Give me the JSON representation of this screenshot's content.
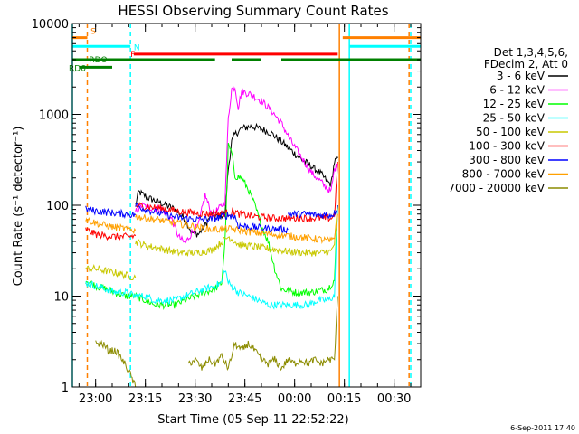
{
  "chart_data": {
    "type": "line",
    "title": "HESSI Observing Summary Count Rates",
    "xlabel": "Start Time (05-Sep-11 22:52:22)",
    "ylabel": "Count Rate (s⁻¹ detector⁻¹)",
    "ylog": true,
    "ylim": [
      1,
      10000
    ],
    "xlim_minutes": [
      -7,
      98
    ],
    "x_ticks": [
      {
        "m": 0,
        "label": "23:00"
      },
      {
        "m": 15,
        "label": "23:15"
      },
      {
        "m": 30,
        "label": "23:30"
      },
      {
        "m": 45,
        "label": "23:45"
      },
      {
        "m": 60,
        "label": "00:00"
      },
      {
        "m": 75,
        "label": "00:15"
      },
      {
        "m": 90,
        "label": "00:30"
      }
    ],
    "y_ticks": [
      {
        "v": 1,
        "label": "1"
      },
      {
        "v": 10,
        "label": "10"
      },
      {
        "v": 100,
        "label": "100"
      },
      {
        "v": 1000,
        "label": "1000"
      },
      {
        "v": 10000,
        "label": "10000"
      }
    ],
    "legend": {
      "header": [
        "Det 1,3,4,5,6,",
        "FDecim 2, Att 0"
      ],
      "placement": "right"
    },
    "series": [
      {
        "name": "3 - 6 keV",
        "color": "#000000",
        "segments": [
          [
            [
              12,
              100
            ],
            [
              13,
              140
            ],
            [
              16,
              120
            ],
            [
              20,
              105
            ],
            [
              24,
              90
            ],
            [
              27,
              70
            ],
            [
              29,
              50
            ],
            [
              31,
              48
            ],
            [
              33,
              60
            ],
            [
              35,
              80
            ],
            [
              37,
              75
            ],
            [
              39,
              80
            ],
            [
              40,
              250
            ],
            [
              41,
              500
            ],
            [
              42,
              600
            ],
            [
              44,
              700
            ],
            [
              47,
              740
            ],
            [
              50,
              690
            ],
            [
              53,
              620
            ],
            [
              56,
              500
            ],
            [
              59,
              400
            ],
            [
              62,
              320
            ],
            [
              65,
              270
            ],
            [
              68,
              220
            ],
            [
              70,
              180
            ],
            [
              71,
              170
            ],
            [
              72,
              300
            ],
            [
              73,
              330
            ]
          ]
        ]
      },
      {
        "name": "6 - 12 keV",
        "color": "#ff00ff",
        "segments": [
          [
            [
              12,
              85
            ],
            [
              14,
              100
            ],
            [
              16,
              95
            ],
            [
              20,
              90
            ],
            [
              23,
              70
            ],
            [
              25,
              45
            ],
            [
              27,
              38
            ],
            [
              29,
              50
            ],
            [
              31,
              60
            ],
            [
              33,
              130
            ],
            [
              35,
              80
            ],
            [
              37,
              90
            ],
            [
              39,
              110
            ],
            [
              40,
              900
            ],
            [
              41,
              1900
            ],
            [
              42,
              2000
            ],
            [
              43,
              1200
            ],
            [
              44,
              1800
            ],
            [
              47,
              1650
            ],
            [
              50,
              1400
            ],
            [
              53,
              1100
            ],
            [
              56,
              800
            ],
            [
              59,
              500
            ],
            [
              62,
              340
            ],
            [
              65,
              230
            ],
            [
              68,
              180
            ],
            [
              70,
              150
            ],
            [
              71,
              140
            ],
            [
              72,
              250
            ],
            [
              73,
              280
            ]
          ]
        ]
      },
      {
        "name": "12 - 25 keV",
        "color": "#00ff00",
        "segments": [
          [
            [
              -3,
              15
            ],
            [
              0,
              13
            ],
            [
              3,
              12
            ],
            [
              6,
              11
            ],
            [
              9,
              10
            ],
            [
              12,
              10
            ],
            [
              15,
              9
            ],
            [
              18,
              8
            ],
            [
              21,
              8
            ],
            [
              24,
              8
            ],
            [
              27,
              9
            ],
            [
              30,
              10
            ],
            [
              33,
              11
            ],
            [
              36,
              12
            ],
            [
              38,
              14
            ],
            [
              39,
              40
            ],
            [
              40,
              450
            ],
            [
              41,
              380
            ],
            [
              42,
              210
            ],
            [
              44,
              200
            ],
            [
              46,
              150
            ],
            [
              48,
              100
            ],
            [
              50,
              60
            ],
            [
              52,
              40
            ],
            [
              54,
              20
            ],
            [
              56,
              12
            ],
            [
              60,
              11
            ],
            [
              65,
              11
            ],
            [
              70,
              12
            ],
            [
              72,
              15
            ],
            [
              73,
              100
            ]
          ]
        ]
      },
      {
        "name": "25 - 50 keV",
        "color": "#00ffff",
        "segments": [
          [
            [
              -3,
              14
            ],
            [
              0,
              13
            ],
            [
              3,
              12
            ],
            [
              6,
              11
            ],
            [
              9,
              11
            ],
            [
              12,
              10
            ],
            [
              15,
              10
            ],
            [
              18,
              9
            ],
            [
              21,
              9
            ],
            [
              24,
              9
            ],
            [
              27,
              10
            ],
            [
              30,
              11
            ],
            [
              33,
              12
            ],
            [
              36,
              13
            ],
            [
              38,
              14
            ],
            [
              39,
              20
            ],
            [
              40,
              14
            ],
            [
              43,
              11
            ],
            [
              46,
              10
            ],
            [
              49,
              9
            ],
            [
              52,
              8
            ],
            [
              55,
              8
            ],
            [
              58,
              8
            ],
            [
              61,
              8
            ],
            [
              64,
              8
            ],
            [
              67,
              9
            ],
            [
              70,
              9
            ],
            [
              72,
              10
            ],
            [
              73,
              100
            ]
          ]
        ]
      },
      {
        "name": "50 - 100 keV",
        "color": "#c8c800",
        "segments": [
          [
            [
              -3,
              20
            ],
            [
              0,
              20
            ],
            [
              3,
              19
            ],
            [
              6,
              18
            ],
            [
              9,
              17
            ],
            [
              12,
              16
            ]
          ],
          [
            [
              12,
              40
            ],
            [
              15,
              36
            ],
            [
              20,
              33
            ],
            [
              25,
              30
            ],
            [
              30,
              30
            ],
            [
              35,
              32
            ],
            [
              40,
              45
            ],
            [
              42,
              40
            ],
            [
              43,
              37
            ],
            [
              48,
              35
            ],
            [
              53,
              33
            ],
            [
              58,
              31
            ],
            [
              63,
              30
            ],
            [
              68,
              30
            ],
            [
              71,
              31
            ],
            [
              72,
              38
            ],
            [
              73,
              100
            ]
          ]
        ]
      },
      {
        "name": "100 - 300 keV",
        "color": "#ff0000",
        "segments": [
          [
            [
              -3,
              54
            ],
            [
              0,
              48
            ],
            [
              3,
              46
            ],
            [
              6,
              45
            ],
            [
              9,
              45
            ],
            [
              12,
              46
            ]
          ],
          [
            [
              12,
              100
            ],
            [
              15,
              97
            ],
            [
              20,
              92
            ],
            [
              25,
              86
            ],
            [
              30,
              82
            ],
            [
              35,
              80
            ],
            [
              40,
              82
            ],
            [
              42,
              85
            ],
            [
              43,
              80
            ],
            [
              48,
              75
            ],
            [
              53,
              72
            ],
            [
              58,
              72
            ],
            [
              63,
              72
            ],
            [
              68,
              72
            ],
            [
              71,
              72
            ],
            [
              72,
              78
            ],
            [
              73,
              300
            ]
          ]
        ]
      },
      {
        "name": "300 - 800 keV",
        "color": "#0000ff",
        "segments": [
          [
            [
              -3,
              90
            ],
            [
              0,
              87
            ],
            [
              3,
              84
            ],
            [
              6,
              82
            ],
            [
              9,
              80
            ],
            [
              12,
              78
            ]
          ],
          [
            [
              12,
              100
            ],
            [
              15,
              90
            ],
            [
              20,
              80
            ],
            [
              25,
              73
            ],
            [
              30,
              70
            ],
            [
              35,
              70
            ],
            [
              40,
              78
            ],
            [
              42,
              75
            ],
            [
              43,
              60
            ],
            [
              48,
              57
            ],
            [
              53,
              55
            ],
            [
              58,
              54
            ]
          ],
          [
            [
              58,
              80
            ],
            [
              63,
              80
            ],
            [
              68,
              78
            ],
            [
              71,
              78
            ],
            [
              72,
              82
            ],
            [
              73,
              100
            ]
          ]
        ]
      },
      {
        "name": "800 - 7000 keV",
        "color": "#ffa000",
        "segments": [
          [
            [
              -3,
              70
            ],
            [
              0,
              64
            ],
            [
              3,
              60
            ],
            [
              6,
              57
            ],
            [
              9,
              55
            ],
            [
              12,
              53
            ]
          ],
          [
            [
              12,
              75
            ],
            [
              15,
              72
            ],
            [
              20,
              68
            ],
            [
              25,
              63
            ],
            [
              30,
              58
            ],
            [
              35,
              54
            ],
            [
              40,
              55
            ],
            [
              43,
              53
            ],
            [
              48,
              50
            ],
            [
              53,
              48
            ],
            [
              58,
              46
            ],
            [
              63,
              44
            ],
            [
              68,
              42
            ],
            [
              71,
              40
            ],
            [
              72,
              45
            ],
            [
              73,
              80
            ]
          ]
        ]
      },
      {
        "name": "7000 - 20000 keV",
        "color": "#8c8c00",
        "segments": [
          [
            [
              0,
              3
            ],
            [
              2,
              3
            ],
            [
              4,
              2.5
            ],
            [
              6,
              2.5
            ],
            [
              8,
              2
            ],
            [
              10,
              1.5
            ],
            [
              12,
              1
            ]
          ],
          [
            [
              28,
              1.8
            ],
            [
              30,
              2
            ],
            [
              32,
              1.6
            ],
            [
              34,
              2
            ],
            [
              36,
              1.8
            ],
            [
              38,
              2.2
            ],
            [
              40,
              1.6
            ],
            [
              42,
              3
            ],
            [
              44,
              2.5
            ],
            [
              46,
              3
            ],
            [
              48,
              2.5
            ],
            [
              50,
              2
            ],
            [
              52,
              1.8
            ],
            [
              54,
              2
            ],
            [
              56,
              1.6
            ],
            [
              58,
              2
            ],
            [
              60,
              1.8
            ],
            [
              62,
              2
            ],
            [
              64,
              1.8
            ],
            [
              66,
              2
            ],
            [
              68,
              1.8
            ],
            [
              70,
              2
            ],
            [
              72,
              2
            ],
            [
              73,
              10
            ]
          ]
        ]
      }
    ],
    "flags": [
      {
        "label": "S",
        "color": "#ff8000",
        "y": 7000,
        "segments": [
          [
            -7,
            -2.5
          ],
          [
            74.5,
            98
          ]
        ]
      },
      {
        "label": "N",
        "color": "#00ffff",
        "y": 5600,
        "segments": [
          [
            -7,
            10.5
          ],
          [
            76.5,
            98
          ]
        ]
      },
      {
        "label": "F",
        "color": "#ff0000",
        "y": 4600,
        "segments": [
          [
            11.5,
            73
          ]
        ]
      },
      {
        "label": "RDO",
        "color": "#008000",
        "y": 4000,
        "segments": [
          [
            -7,
            36
          ],
          [
            41,
            50
          ],
          [
            56,
            98
          ]
        ]
      },
      {
        "label": "RD6",
        "color": "#008000",
        "y": 3300,
        "segments": [
          [
            -5,
            5
          ]
        ]
      }
    ],
    "vlines": [
      {
        "m": -7,
        "color": "#00ffff",
        "dash": false
      },
      {
        "m": -2.5,
        "color": "#ff8000",
        "dash": true
      },
      {
        "m": 10.5,
        "color": "#00ffff",
        "dash": true
      },
      {
        "m": 73.5,
        "color": "#ff8000",
        "dash": false
      },
      {
        "m": 76.5,
        "color": "#00ffff",
        "dash": false
      },
      {
        "m": 94.5,
        "color": "#ff8000",
        "dash": true
      },
      {
        "m": 95,
        "color": "#00ffff",
        "dash": true
      }
    ]
  },
  "timestamp": "6-Sep-2011 17:40"
}
